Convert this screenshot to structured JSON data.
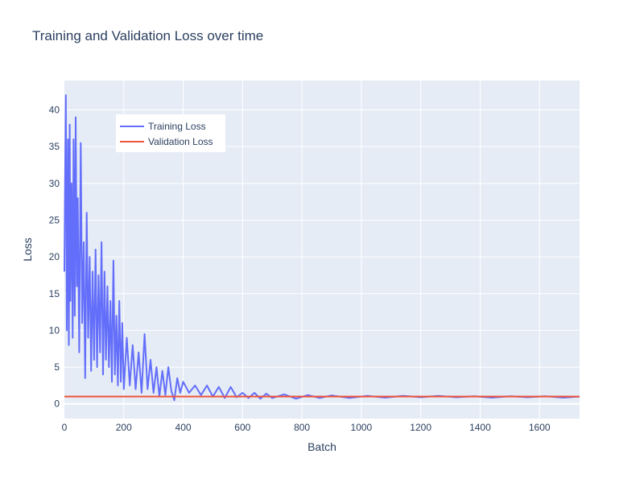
{
  "chart_data": {
    "type": "line",
    "title": "Training and Validation Loss over time",
    "xlabel": "Batch",
    "ylabel": "Loss",
    "xlim": [
      0,
      1735
    ],
    "ylim": [
      -2,
      44
    ],
    "x_ticks": [
      0,
      200,
      400,
      600,
      800,
      1000,
      1200,
      1400,
      1600
    ],
    "y_ticks": [
      0,
      5,
      10,
      15,
      20,
      25,
      30,
      35,
      40
    ],
    "grid": true,
    "legend_position": "top-left",
    "series": [
      {
        "name": "Training Loss",
        "color": "#636efa",
        "x": [
          0,
          2,
          5,
          8,
          12,
          15,
          18,
          20,
          24,
          28,
          31,
          35,
          38,
          42,
          45,
          50,
          55,
          60,
          65,
          70,
          75,
          80,
          85,
          90,
          95,
          100,
          105,
          110,
          115,
          120,
          125,
          130,
          135,
          140,
          145,
          150,
          155,
          160,
          165,
          170,
          175,
          180,
          185,
          190,
          195,
          200,
          210,
          220,
          230,
          240,
          250,
          260,
          270,
          280,
          290,
          300,
          310,
          320,
          330,
          340,
          350,
          360,
          370,
          380,
          390,
          400,
          420,
          440,
          460,
          480,
          500,
          520,
          540,
          560,
          580,
          600,
          620,
          640,
          660,
          680,
          700,
          740,
          780,
          820,
          860,
          900,
          960,
          1020,
          1080,
          1140,
          1200,
          1260,
          1320,
          1380,
          1440,
          1500,
          1560,
          1620,
          1680,
          1735
        ],
        "values": [
          18,
          29,
          42,
          10,
          36,
          8,
          38,
          14,
          30,
          9,
          36,
          12,
          39,
          16,
          28,
          7,
          35.5,
          11,
          22,
          3.5,
          26,
          9,
          20,
          4.5,
          18,
          6,
          21,
          5,
          17.5,
          7,
          22,
          4,
          18,
          6,
          16,
          5,
          14,
          3,
          19.5,
          4,
          12,
          2.5,
          14,
          3,
          11,
          2,
          9,
          2.5,
          8,
          2,
          7,
          1.5,
          9.5,
          2,
          6,
          1.5,
          5,
          1,
          4.5,
          1.2,
          5,
          1.8,
          0.5,
          3.5,
          1.5,
          3,
          1.5,
          2.5,
          1.2,
          2.5,
          1,
          2.3,
          0.8,
          2.3,
          0.9,
          1.5,
          0.8,
          1.5,
          0.7,
          1.4,
          0.8,
          1.3,
          0.7,
          1.2,
          0.8,
          1.15,
          0.8,
          1.1,
          0.85,
          1.1,
          0.9,
          1.1,
          0.9,
          1.05,
          0.85,
          1.05,
          0.9,
          1.05,
          0.85,
          1.0
        ]
      },
      {
        "name": "Validation Loss",
        "color": "#ef553b",
        "x": [
          0,
          1735
        ],
        "values": [
          1.0,
          1.0
        ]
      }
    ]
  }
}
